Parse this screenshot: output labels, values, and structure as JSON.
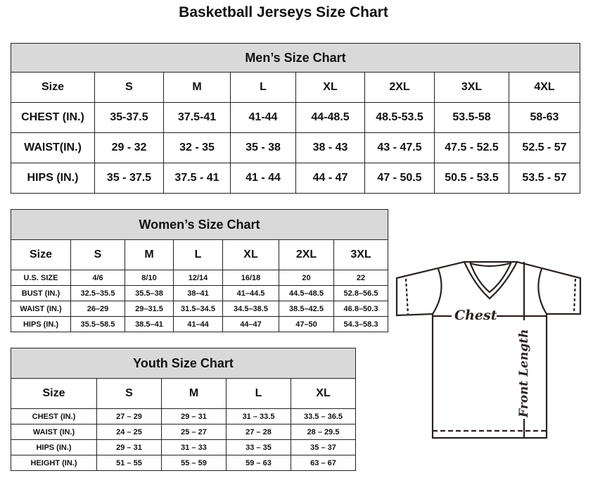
{
  "title": "Basketball Jerseys Size Chart",
  "mens": {
    "caption": "Men’s Size Chart",
    "header": [
      "Size",
      "S",
      "M",
      "L",
      "XL",
      "2XL",
      "3XL",
      "4XL"
    ],
    "rows": [
      [
        "CHEST (IN.)",
        "35-37.5",
        "37.5-41",
        "41-44",
        "44-48.5",
        "48.5-53.5",
        "53.5-58",
        "58-63"
      ],
      [
        "WAIST(IN.)",
        "29 - 32",
        "32 - 35",
        "35 - 38",
        "38 - 43",
        "43 - 47.5",
        "47.5 - 52.5",
        "52.5 - 57"
      ],
      [
        "HIPS (IN.)",
        "35 - 37.5",
        "37.5 - 41",
        "41 - 44",
        "44 - 47",
        "47 - 50.5",
        "50.5 - 53.5",
        "53.5 - 57"
      ]
    ]
  },
  "womens": {
    "caption": "Women’s Size Chart",
    "header": [
      "Size",
      "S",
      "M",
      "L",
      "XL",
      "2XL",
      "3XL"
    ],
    "rows": [
      [
        "U.S. SIZE",
        "4/6",
        "8/10",
        "12/14",
        "16/18",
        "20",
        "22"
      ],
      [
        "BUST (IN.)",
        "32.5–35.5",
        "35.5–38",
        "38–41",
        "41–44.5",
        "44.5–48.5",
        "52.8–56.5"
      ],
      [
        "WAIST (IN.)",
        "26–29",
        "29–31.5",
        "31.5–34.5",
        "34.5–38.5",
        "38.5–42.5",
        "46.8–50.3"
      ],
      [
        "HIPS (IN.)",
        "35.5–58.5",
        "38.5–41",
        "41–44",
        "44–47",
        "47–50",
        "54.3–58.3"
      ]
    ]
  },
  "youth": {
    "caption": "Youth Size Chart",
    "header": [
      "Size",
      "S",
      "M",
      "L",
      "XL"
    ],
    "rows": [
      [
        "CHEST (IN.)",
        "27 – 29",
        "29 – 31",
        "31 – 33.5",
        "33.5 – 36.5"
      ],
      [
        "WAIST (IN.)",
        "24 – 25",
        "25 – 27",
        "27 – 28",
        "28 – 29.5"
      ],
      [
        "HIPS (IN.)",
        "29 – 31",
        "31 – 33",
        "33 – 35",
        "35 – 37"
      ],
      [
        "HEIGHT (IN.)",
        "51 – 55",
        "55 – 59",
        "59 – 63",
        "63 – 67"
      ]
    ]
  },
  "diagram": {
    "chest_label": "Chest",
    "length_label": "Front Length"
  }
}
